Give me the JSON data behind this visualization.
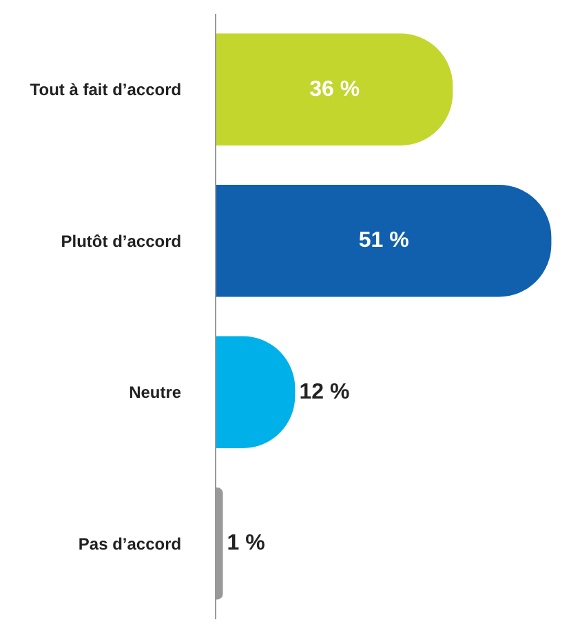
{
  "chart_data": {
    "type": "bar",
    "orientation": "horizontal",
    "categories": [
      "Tout à fait d’accord",
      "Plutôt d’accord",
      "Neutre",
      "Pas d’accord"
    ],
    "values": [
      36,
      51,
      12,
      1
    ],
    "colors": [
      "#c2d62e",
      "#1060ae",
      "#00b0e8",
      "#999999"
    ],
    "value_labels": [
      "36 %",
      "51 %",
      "12 %",
      "1 %"
    ],
    "grid": false,
    "legend": false
  }
}
